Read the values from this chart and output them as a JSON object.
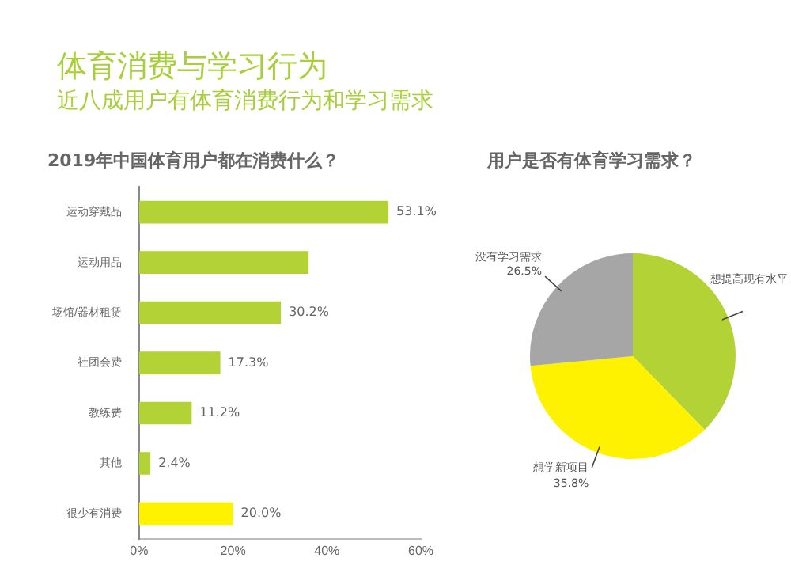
{
  "chart_data": [
    {
      "type": "bar",
      "orientation": "horizontal",
      "title": "2019年中国体育用户都在消费什么？",
      "annotations": [
        "体育消费与学习行为",
        "近八成用户有体育消费行为和学习需求"
      ],
      "categories": [
        "运动穿戴品",
        "运动用品",
        "场馆/器材租赁",
        "社团会费",
        "教练费",
        "其他",
        "很少有消费"
      ],
      "values": [
        53.1,
        36.1,
        30.2,
        17.3,
        11.2,
        2.4,
        20.0
      ],
      "value_labels": [
        "53.1%",
        null,
        "30.2%",
        "17.3%",
        "11.2%",
        "2.4%",
        "20.0%"
      ],
      "colors": [
        "#b2d235",
        "#b2d235",
        "#b2d235",
        "#b2d235",
        "#b2d235",
        "#b2d235",
        "#fff200"
      ],
      "xlim": [
        0,
        60
      ],
      "xticks": [
        {
          "value": 0,
          "label": "0%"
        },
        {
          "value": 20,
          "label": "20%"
        },
        {
          "value": 40,
          "label": "40%"
        },
        {
          "value": 60,
          "label": "60%"
        }
      ],
      "grid": false,
      "legend": false
    },
    {
      "type": "pie",
      "title": "用户是否有体育学习需求？",
      "categories": [
        "想提高现有水平",
        "想学新项目",
        "没有学习需求"
      ],
      "values": [
        37.7,
        35.8,
        26.5
      ],
      "value_labels": [
        null,
        "35.8%",
        "26.5%"
      ],
      "colors": [
        "#b2d235",
        "#fff200",
        "#a6a6a6"
      ],
      "legend": false
    }
  ]
}
